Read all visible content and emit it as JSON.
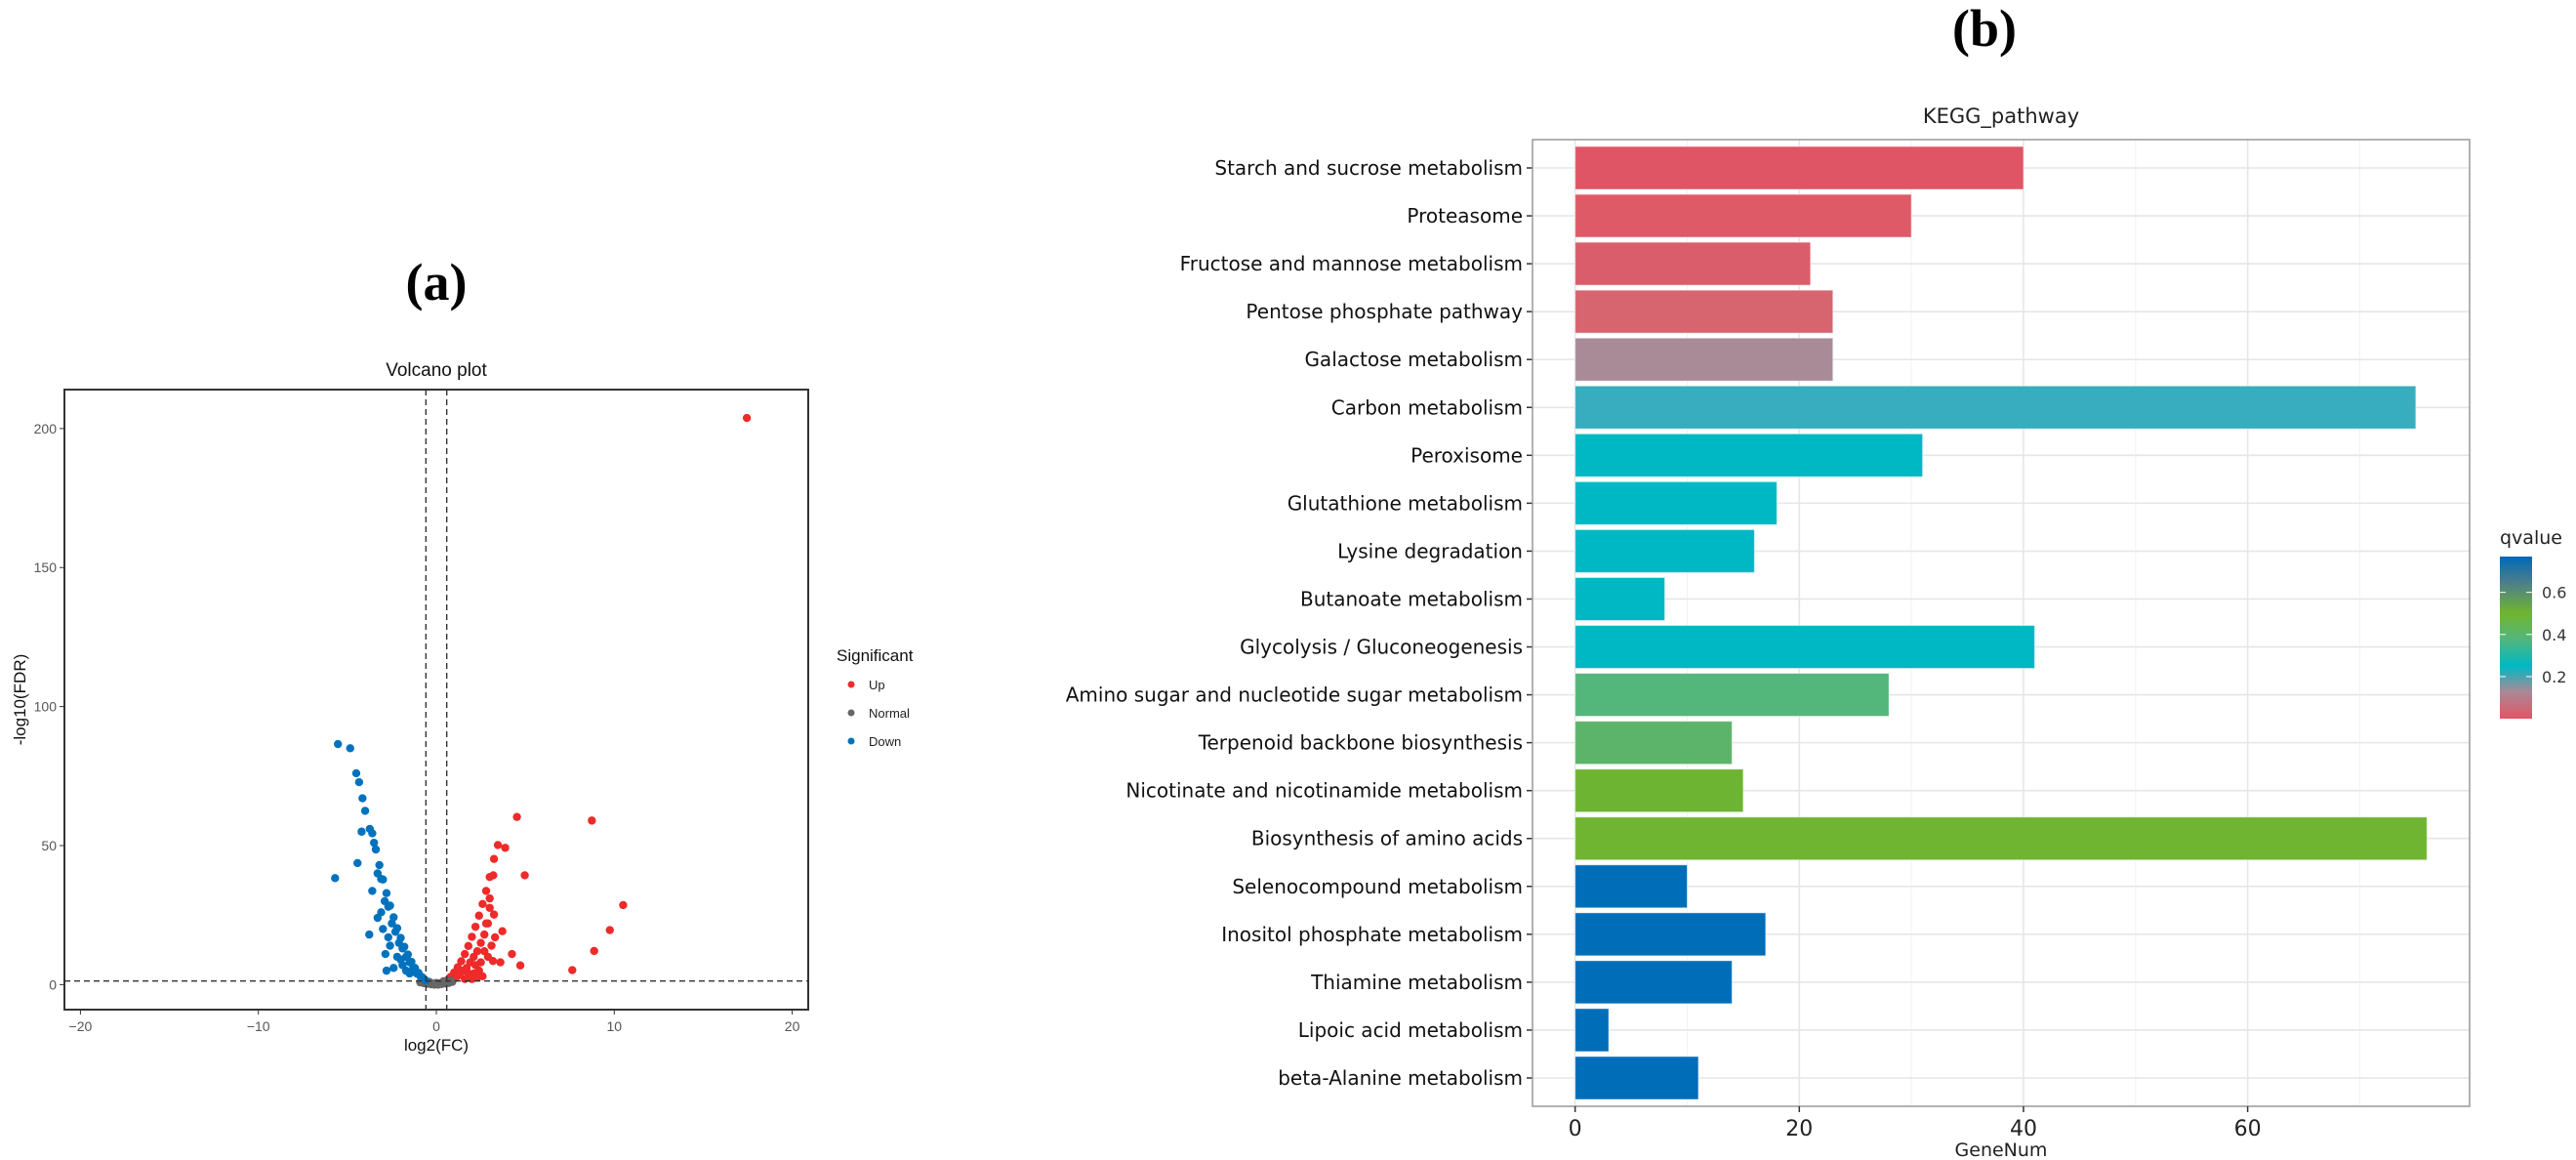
{
  "panels": {
    "a_label": "(a)",
    "b_label": "(b)"
  },
  "chart_data": [
    {
      "type": "scatter",
      "title": "Volcano plot",
      "xlabel": "log2(FC)",
      "ylabel": "-log10(FDR)",
      "xlim": [
        -20.9,
        20.9
      ],
      "ylim": [
        -9,
        214
      ],
      "xticks": [
        -20,
        -10,
        0,
        10,
        20
      ],
      "yticks": [
        0,
        50,
        100,
        150,
        200
      ],
      "grid": false,
      "thresholds": {
        "log2fc": [
          -0.585,
          0.585
        ],
        "neglog10fdr": 1.3
      },
      "legend": {
        "title": "Significant",
        "position": "right",
        "entries": [
          {
            "label": "Up",
            "color": "#EE2A2A"
          },
          {
            "label": "Normal",
            "color": "#666666"
          },
          {
            "label": "Down",
            "color": "#0072BD"
          }
        ]
      },
      "series": [
        {
          "name": "Up",
          "color": "#EE2A2A",
          "points": [
            [
              17.45,
              203.8
            ],
            [
              4.53,
              60.3
            ],
            [
              8.74,
              59
            ],
            [
              3.46,
              50.2
            ],
            [
              3.87,
              49.2
            ],
            [
              4.97,
              39.3
            ],
            [
              10.5,
              28.6
            ],
            [
              9.75,
              19.6
            ],
            [
              8.87,
              12.1
            ],
            [
              7.64,
              5.2
            ],
            [
              4.72,
              6.9
            ],
            [
              4.25,
              11
            ],
            [
              3.71,
              19.2
            ],
            [
              3.18,
              8.5
            ],
            [
              3.24,
              25.2
            ],
            [
              3.0,
              27.6
            ],
            [
              3.2,
              39.3
            ],
            [
              3.24,
              45.2
            ],
            [
              0.6,
              1.5
            ],
            [
              0.8,
              2.8
            ],
            [
              1.0,
              4.3
            ],
            [
              1.2,
              6.2
            ],
            [
              1.4,
              8.4
            ],
            [
              1.6,
              11
            ],
            [
              1.8,
              13.9
            ],
            [
              2.0,
              17.2
            ],
            [
              2.2,
              20.8
            ],
            [
              2.4,
              24.8
            ],
            [
              2.6,
              29
            ],
            [
              2.8,
              33.7
            ],
            [
              3.0,
              38.7
            ],
            [
              0.9,
              2
            ],
            [
              1.1,
              2.5
            ],
            [
              1.3,
              3.5
            ],
            [
              1.5,
              5
            ],
            [
              1.7,
              6
            ],
            [
              1.9,
              8
            ],
            [
              2.1,
              10
            ],
            [
              2.3,
              12
            ],
            [
              2.5,
              15
            ],
            [
              2.7,
              18
            ],
            [
              2.9,
              22
            ],
            [
              2.5,
              8
            ],
            [
              2.1,
              4
            ],
            [
              2.6,
              3
            ],
            [
              2.9,
              10
            ],
            [
              3.1,
              14
            ],
            [
              2.0,
              2
            ],
            [
              1.6,
              2
            ],
            [
              2.8,
              22
            ],
            [
              3.3,
              17
            ],
            [
              3.6,
              8
            ],
            [
              2.4,
              5
            ],
            [
              2.7,
              12
            ],
            [
              3.0,
              31
            ],
            [
              2.2,
              7
            ],
            [
              1.8,
              4
            ],
            [
              2.3,
              2.5
            ]
          ]
        },
        {
          "name": "Normal",
          "color": "#666666",
          "points": [
            [
              -0.9,
              0.8
            ],
            [
              -0.7,
              0.5
            ],
            [
              -0.5,
              0.3
            ],
            [
              -0.3,
              0.1
            ],
            [
              -0.1,
              0
            ],
            [
              0.1,
              0
            ],
            [
              0.3,
              0.2
            ],
            [
              0.5,
              0.4
            ],
            [
              0.7,
              0.6
            ],
            [
              0.9,
              1
            ],
            [
              -0.4,
              1
            ],
            [
              0.4,
              1.2
            ],
            [
              0,
              0.6
            ],
            [
              -0.8,
              1.6
            ],
            [
              0.8,
              1.4
            ],
            [
              -0.2,
              0.4
            ],
            [
              0.2,
              0.5
            ],
            [
              -0.6,
              1.1
            ],
            [
              0.6,
              0.9
            ]
          ]
        },
        {
          "name": "Down",
          "color": "#0072BD",
          "points": [
            [
              -5.53,
              86.5
            ],
            [
              -4.84,
              85
            ],
            [
              -4.5,
              76
            ],
            [
              -4.34,
              72.8
            ],
            [
              -4.15,
              67
            ],
            [
              -4.0,
              62.5
            ],
            [
              -4.2,
              55
            ],
            [
              -3.74,
              56
            ],
            [
              -4.43,
              43.7
            ],
            [
              -5.69,
              38.3
            ],
            [
              -3.77,
              18
            ],
            [
              -2.86,
              11
            ],
            [
              -3.6,
              33.7
            ],
            [
              -3.6,
              54.4
            ],
            [
              -3.4,
              48.6
            ],
            [
              -3.2,
              43
            ],
            [
              -3.0,
              37.8
            ],
            [
              -2.8,
              32.9
            ],
            [
              -2.6,
              28.4
            ],
            [
              -2.4,
              24.2
            ],
            [
              -2.2,
              20.3
            ],
            [
              -2.0,
              16.8
            ],
            [
              -1.8,
              13.6
            ],
            [
              -1.6,
              10.8
            ],
            [
              -1.4,
              8.2
            ],
            [
              -1.2,
              6
            ],
            [
              -1.0,
              4.2
            ],
            [
              -0.8,
              2.7
            ],
            [
              -0.6,
              1.5
            ],
            [
              -3.5,
              51
            ],
            [
              -3.3,
              40
            ],
            [
              -3.1,
              38
            ],
            [
              -2.9,
              30
            ],
            [
              -2.7,
              28
            ],
            [
              -2.5,
              22
            ],
            [
              -2.3,
              19
            ],
            [
              -2.1,
              15
            ],
            [
              -1.9,
              13
            ],
            [
              -1.7,
              10
            ],
            [
              -1.5,
              8
            ],
            [
              -1.3,
              6
            ],
            [
              -1.1,
              4
            ],
            [
              -0.9,
              3
            ],
            [
              -3.1,
              26
            ],
            [
              -3.3,
              24
            ],
            [
              -2.6,
              14
            ],
            [
              -2.2,
              10
            ],
            [
              -2.4,
              6
            ],
            [
              -1.9,
              7
            ],
            [
              -1.5,
              4
            ],
            [
              -2.8,
              5
            ],
            [
              -3.0,
              20
            ],
            [
              -2.7,
              17
            ],
            [
              -2.0,
              9
            ],
            [
              -1.7,
              5
            ]
          ]
        }
      ]
    },
    {
      "type": "bar",
      "orientation": "horizontal",
      "title": "KEGG_pathway",
      "xlabel": "GeneNum",
      "ylabel": "",
      "xlim": [
        -3.8,
        79.8
      ],
      "xticks": [
        0,
        20,
        40,
        60
      ],
      "grid": true,
      "categories": [
        "Starch and sucrose metabolism",
        "Proteasome",
        "Fructose and mannose metabolism",
        "Pentose phosphate pathway",
        "Galactose metabolism",
        "Carbon metabolism",
        "Peroxisome",
        "Glutathione metabolism",
        "Lysine degradation",
        "Butanoate metabolism",
        "Glycolysis / Gluconeogenesis",
        "Amino sugar and nucleotide sugar metabolism",
        "Terpenoid backbone biosynthesis",
        "Nicotinate and nicotinamide metabolism",
        "Biosynthesis of amino acids",
        "Selenocompound metabolism",
        "Inositol phosphate metabolism",
        "Thiamine metabolism",
        "Lipoic acid metabolism",
        "beta-Alanine metabolism"
      ],
      "values": [
        40,
        30,
        21,
        23,
        23,
        75,
        31,
        18,
        16,
        8,
        41,
        28,
        14,
        15,
        76,
        10,
        17,
        14,
        3,
        11
      ],
      "qvalues": [
        0.0,
        0.02,
        0.04,
        0.07,
        0.14,
        0.2,
        0.24,
        0.24,
        0.24,
        0.24,
        0.24,
        0.38,
        0.42,
        0.5,
        0.5,
        0.77,
        0.77,
        0.77,
        0.77,
        0.77
      ],
      "colors": [
        "#E05565",
        "#DF5A67",
        "#DA5D6B",
        "#D6656F",
        "#A98A97",
        "#37ADBF",
        "#00B8C4",
        "#00B8C4",
        "#00B8C4",
        "#00B8C4",
        "#00B8C4",
        "#53B67A",
        "#5BB46A",
        "#6DB433",
        "#6FB532",
        "#006DB8",
        "#006DB8",
        "#006DB8",
        "#006DB8",
        "#006DB8"
      ],
      "legend": {
        "title": "qvalue",
        "position": "right",
        "range": [
          0,
          0.77
        ],
        "ticks": [
          0.2,
          0.4,
          0.6
        ],
        "gradient": [
          [
            "#E15564",
            0
          ],
          [
            "#A98A97",
            0.13
          ],
          [
            "#00B8C4",
            0.25
          ],
          [
            "#53B67A",
            0.38
          ],
          [
            "#70B52E",
            0.5
          ],
          [
            "#4F8088",
            0.64
          ],
          [
            "#0068B8",
            0.77
          ]
        ]
      }
    }
  ]
}
